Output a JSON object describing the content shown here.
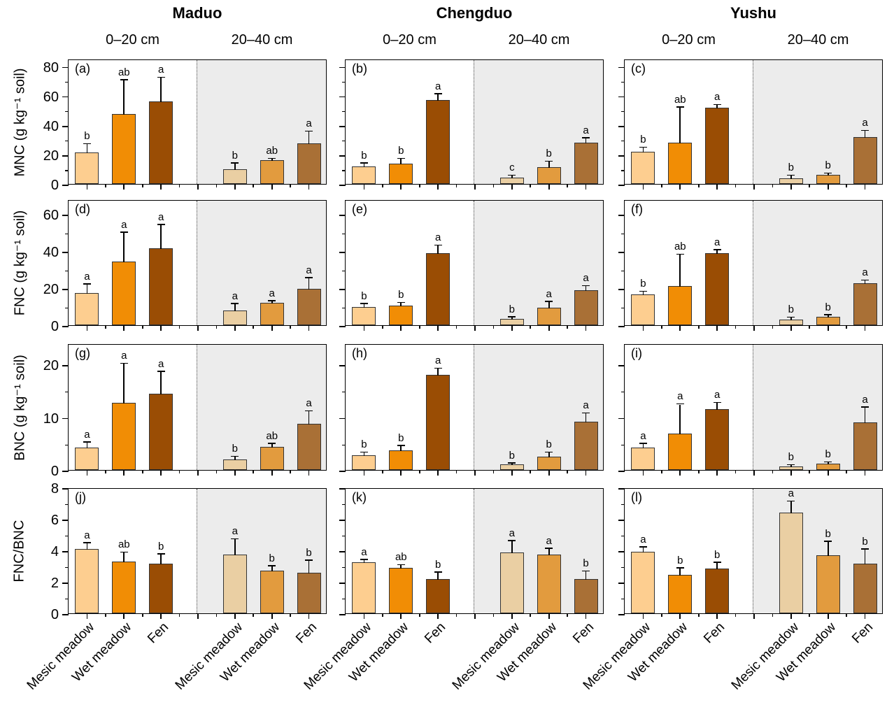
{
  "header": {
    "sites": [
      "Maduo",
      "Chengduo",
      "Yushu"
    ],
    "depth_labels": [
      "0–20 cm",
      "20–40 cm"
    ]
  },
  "chart_data": {
    "type": "bar",
    "categories": [
      "Mesic meadow",
      "Wet meadow",
      "Fen"
    ],
    "depths": [
      "0–20 cm",
      "20–40 cm"
    ],
    "legend": "none",
    "grid": "off",
    "colors": {
      "bars_0_20": [
        "#FDCE90",
        "#F18D05",
        "#9A4D04"
      ],
      "bars_20_40": [
        "#EACFA3",
        "#E29B3E",
        "#A97036"
      ],
      "shaded_depth_bg": "#ECECEC",
      "axis": "#000000"
    },
    "rows": [
      {
        "label": "MNC (g kg⁻¹ soil)",
        "ylim": [
          0,
          85
        ],
        "yticks": [
          0,
          20,
          40,
          60,
          80
        ],
        "yminor": [
          10,
          30,
          50,
          70
        ]
      },
      {
        "label": "FNC (g kg⁻¹ soil)",
        "ylim": [
          0,
          68
        ],
        "yticks": [
          0,
          20,
          40,
          60
        ],
        "yminor": [
          10,
          30,
          50
        ]
      },
      {
        "label": "BNC (g kg⁻¹ soil)",
        "ylim": [
          0,
          24
        ],
        "yticks": [
          0,
          10,
          20
        ],
        "yminor": [
          5,
          15
        ]
      },
      {
        "label": "FNC/BNC",
        "ylim": [
          0,
          8
        ],
        "yticks": [
          0,
          2,
          4,
          6,
          8
        ],
        "yminor": [
          1,
          3,
          5,
          7
        ]
      }
    ],
    "panels": [
      {
        "panel": "(a)",
        "site": "Maduo",
        "measure": "MNC",
        "row": 0,
        "groups": [
          {
            "depth": "0–20 cm",
            "values": [
              21.5,
              47.5,
              56
            ],
            "errors": [
              5.5,
              23,
              16
            ],
            "letters": [
              "b",
              "ab",
              "a"
            ]
          },
          {
            "depth": "20–40 cm",
            "values": [
              10,
              16,
              27.5
            ],
            "errors": [
              4,
              1,
              8
            ],
            "letters": [
              "b",
              "ab",
              "a"
            ]
          }
        ]
      },
      {
        "panel": "(b)",
        "site": "Chengduo",
        "measure": "MNC",
        "row": 0,
        "groups": [
          {
            "depth": "0–20 cm",
            "values": [
              12,
              14,
              57
            ],
            "errors": [
              2,
              3,
              4
            ],
            "letters": [
              "b",
              "b",
              "a"
            ]
          },
          {
            "depth": "20–40 cm",
            "values": [
              4.5,
              11.5,
              28
            ],
            "errors": [
              1,
              3.5,
              3
            ],
            "letters": [
              "c",
              "b",
              "a"
            ]
          }
        ]
      },
      {
        "panel": "(c)",
        "site": "Yushu",
        "measure": "MNC",
        "row": 0,
        "groups": [
          {
            "depth": "0–20 cm",
            "values": [
              22,
              28,
              52
            ],
            "errors": [
              2.5,
              24,
              1.5
            ],
            "letters": [
              "b",
              "ab",
              "a"
            ]
          },
          {
            "depth": "20–40 cm",
            "values": [
              4,
              6,
              32
            ],
            "errors": [
              1.5,
              1,
              4
            ],
            "letters": [
              "b",
              "b",
              "a"
            ]
          }
        ]
      },
      {
        "panel": "(d)",
        "site": "Maduo",
        "measure": "FNC",
        "row": 1,
        "groups": [
          {
            "depth": "0–20 cm",
            "values": [
              17.5,
              34.5,
              41.5
            ],
            "errors": [
              4.5,
              15.5,
              12.5
            ],
            "letters": [
              "a",
              "a",
              "a"
            ]
          },
          {
            "depth": "20–40 cm",
            "values": [
              8,
              12,
              19.5
            ],
            "errors": [
              3.5,
              1,
              6
            ],
            "letters": [
              "a",
              "a",
              "a"
            ]
          }
        ]
      },
      {
        "panel": "(e)",
        "site": "Chengduo",
        "measure": "FNC",
        "row": 1,
        "groups": [
          {
            "depth": "0–20 cm",
            "values": [
              10,
              10.5,
              39
            ],
            "errors": [
              1.5,
              1.5,
              4
            ],
            "letters": [
              "b",
              "b",
              "a"
            ]
          },
          {
            "depth": "20–40 cm",
            "values": [
              3.5,
              9.5,
              19
            ],
            "errors": [
              0.7,
              3,
              2
            ],
            "letters": [
              "b",
              "a",
              "a"
            ]
          }
        ]
      },
      {
        "panel": "(f)",
        "site": "Yushu",
        "measure": "FNC",
        "row": 1,
        "groups": [
          {
            "depth": "0–20 cm",
            "values": [
              16.5,
              21,
              39
            ],
            "errors": [
              1.5,
              17,
              1.5
            ],
            "letters": [
              "b",
              "ab",
              "a"
            ]
          },
          {
            "depth": "20–40 cm",
            "values": [
              3,
              4.5,
              22.5
            ],
            "errors": [
              1,
              0.8,
              1.5
            ],
            "letters": [
              "b",
              "b",
              "a"
            ]
          }
        ]
      },
      {
        "panel": "(g)",
        "site": "Maduo",
        "measure": "BNC",
        "row": 2,
        "groups": [
          {
            "depth": "0–20 cm",
            "values": [
              4.2,
              12.7,
              14.4
            ],
            "errors": [
              1,
              7.4,
              4.2
            ],
            "letters": [
              "a",
              "a",
              "a"
            ]
          },
          {
            "depth": "20–40 cm",
            "values": [
              2,
              4.4,
              8.7
            ],
            "errors": [
              0.5,
              0.5,
              2.4
            ],
            "letters": [
              "b",
              "ab",
              "a"
            ]
          }
        ]
      },
      {
        "panel": "(h)",
        "site": "Chengduo",
        "measure": "BNC",
        "row": 2,
        "groups": [
          {
            "depth": "0–20 cm",
            "values": [
              2.8,
              3.7,
              18
            ],
            "errors": [
              0.5,
              0.8,
              1.2
            ],
            "letters": [
              "b",
              "b",
              "a"
            ]
          },
          {
            "depth": "20–40 cm",
            "values": [
              1,
              2.5,
              9.2
            ],
            "errors": [
              0.2,
              0.8,
              1.5
            ],
            "letters": [
              "b",
              "b",
              "a"
            ]
          }
        ]
      },
      {
        "panel": "(i)",
        "site": "Yushu",
        "measure": "BNC",
        "row": 2,
        "groups": [
          {
            "depth": "0–20 cm",
            "values": [
              4.3,
              6.9,
              11.5
            ],
            "errors": [
              0.6,
              5.5,
              1.2
            ],
            "letters": [
              "a",
              "a",
              "a"
            ]
          },
          {
            "depth": "20–40 cm",
            "values": [
              0.6,
              1.2,
              9
            ],
            "errors": [
              0.3,
              0.2,
              2.8
            ],
            "letters": [
              "b",
              "b",
              "a"
            ]
          }
        ]
      },
      {
        "panel": "(j)",
        "site": "Maduo",
        "measure": "FNC/BNC",
        "row": 3,
        "groups": [
          {
            "depth": "0–20 cm",
            "values": [
              4.1,
              3.3,
              3.15
            ],
            "errors": [
              0.35,
              0.55,
              0.6
            ],
            "letters": [
              "a",
              "ab",
              "b"
            ]
          },
          {
            "depth": "20–40 cm",
            "values": [
              3.75,
              2.7,
              2.6
            ],
            "errors": [
              0.95,
              0.3,
              0.75
            ],
            "letters": [
              "a",
              "b",
              "b"
            ]
          }
        ]
      },
      {
        "panel": "(k)",
        "site": "Chengduo",
        "measure": "FNC/BNC",
        "row": 3,
        "groups": [
          {
            "depth": "0–20 cm",
            "values": [
              3.25,
              2.9,
              2.2
            ],
            "errors": [
              0.15,
              0.15,
              0.4
            ],
            "letters": [
              "a",
              "ab",
              "b"
            ]
          },
          {
            "depth": "20–40 cm",
            "values": [
              3.85,
              3.75,
              2.2
            ],
            "errors": [
              0.75,
              0.35,
              0.45
            ],
            "letters": [
              "a",
              "a",
              "b"
            ]
          }
        ]
      },
      {
        "panel": "(l)",
        "site": "Yushu",
        "measure": "FNC/BNC",
        "row": 3,
        "groups": [
          {
            "depth": "0–20 cm",
            "values": [
              3.9,
              2.45,
              2.85
            ],
            "errors": [
              0.3,
              0.4,
              0.35
            ],
            "letters": [
              "a",
              "b",
              "b"
            ]
          },
          {
            "depth": "20–40 cm",
            "values": [
              6.4,
              3.7,
              3.15
            ],
            "errors": [
              0.7,
              0.85,
              0.9
            ],
            "letters": [
              "a",
              "b",
              "b"
            ]
          }
        ]
      }
    ]
  }
}
